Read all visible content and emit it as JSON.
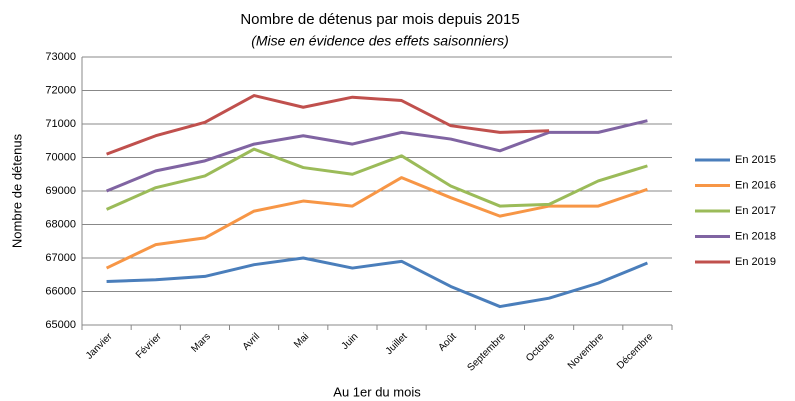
{
  "chart_data": {
    "type": "line",
    "title": "Nombre de détenus par mois depuis 2015",
    "subtitle": "(Mise en évidence des effets saisonniers)",
    "x_label": "Au 1er du mois",
    "y_label": "Nombre de détenus",
    "categories": [
      "Janvier",
      "Février",
      "Mars",
      "Avril",
      "Mai",
      "Juin",
      "Juillet",
      "Août",
      "Septembre",
      "Octobre",
      "Novembre",
      "Décembre"
    ],
    "series": [
      {
        "name": "En 2015",
        "color": "#4a7ebb",
        "values": [
          66300,
          66350,
          66450,
          66800,
          67000,
          66700,
          66900,
          66150,
          65550,
          65800,
          66250,
          66850
        ]
      },
      {
        "name": "En 2016",
        "color": "#f79646",
        "values": [
          66700,
          67400,
          67600,
          68400,
          68700,
          68550,
          69400,
          68800,
          68250,
          68550,
          68550,
          69050
        ]
      },
      {
        "name": "En 2017",
        "color": "#9bbb59",
        "values": [
          68450,
          69100,
          69450,
          70250,
          69700,
          69500,
          70050,
          69150,
          68550,
          68600,
          69300,
          69750
        ]
      },
      {
        "name": "En 2018",
        "color": "#8064a2",
        "values": [
          69000,
          69600,
          69900,
          70400,
          70650,
          70400,
          70750,
          70550,
          70200,
          70750,
          70750,
          71100
        ]
      },
      {
        "name": "En 2019",
        "color": "#c0504d",
        "values": [
          70100,
          70650,
          71050,
          71850,
          71500,
          71800,
          71700,
          70950,
          70750,
          70800,
          null,
          null
        ]
      }
    ],
    "ylim": [
      65000,
      73000
    ],
    "yticks": [
      65000,
      66000,
      67000,
      68000,
      69000,
      70000,
      71000,
      72000,
      73000
    ],
    "grid": true,
    "legend": "right"
  }
}
